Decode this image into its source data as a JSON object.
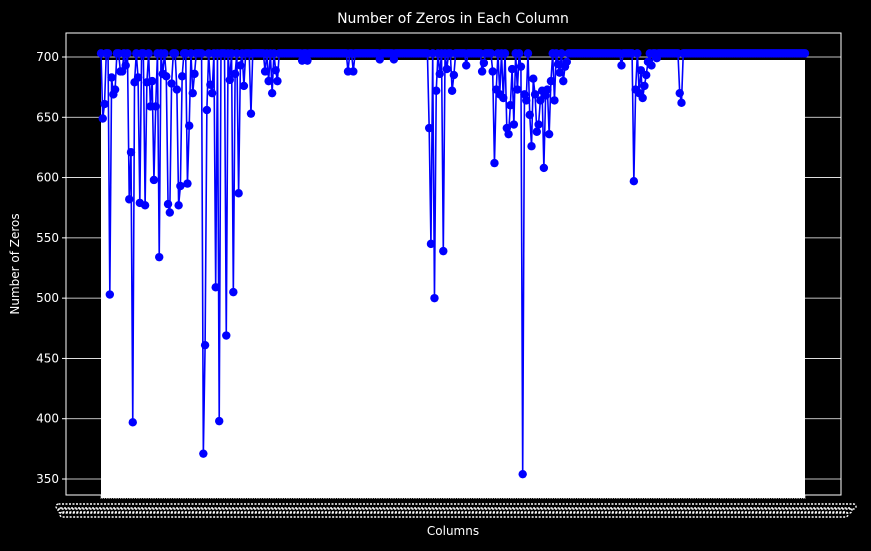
{
  "chart_data": {
    "type": "line",
    "title": "Number of Zeros in Each Column",
    "xlabel": "Columns",
    "ylabel": "Number of Zeros",
    "ylim": [
      335,
      719
    ],
    "yticks": [
      350,
      400,
      450,
      500,
      550,
      600,
      650,
      700
    ],
    "grid": true,
    "marker": "circle",
    "colors": {
      "line": "#0000ff",
      "marker": "#0000ff",
      "background": "#000000",
      "plot_area": "#ffffff",
      "text": "#ffffff",
      "grid": "#ffffff"
    },
    "baseline": 703,
    "n_points": 400,
    "dips": [
      [
        1,
        649
      ],
      [
        2,
        661
      ],
      [
        5,
        503
      ],
      [
        6,
        683
      ],
      [
        7,
        669
      ],
      [
        8,
        673
      ],
      [
        11,
        688
      ],
      [
        12,
        688
      ],
      [
        14,
        693
      ],
      [
        16,
        582
      ],
      [
        17,
        621
      ],
      [
        18,
        397
      ],
      [
        19,
        679
      ],
      [
        21,
        683
      ],
      [
        22,
        579
      ],
      [
        25,
        577
      ],
      [
        26,
        679
      ],
      [
        28,
        659
      ],
      [
        29,
        680
      ],
      [
        30,
        598
      ],
      [
        31,
        659
      ],
      [
        33,
        534
      ],
      [
        35,
        686
      ],
      [
        37,
        684
      ],
      [
        38,
        578
      ],
      [
        39,
        571
      ],
      [
        40,
        678
      ],
      [
        43,
        673
      ],
      [
        44,
        577
      ],
      [
        45,
        593
      ],
      [
        46,
        684
      ],
      [
        49,
        595
      ],
      [
        50,
        643
      ],
      [
        52,
        670
      ],
      [
        53,
        686
      ],
      [
        58,
        371
      ],
      [
        59,
        461
      ],
      [
        60,
        656
      ],
      [
        62,
        677
      ],
      [
        63,
        670
      ],
      [
        65,
        509
      ],
      [
        67,
        398
      ],
      [
        71,
        469
      ],
      [
        73,
        681
      ],
      [
        75,
        505
      ],
      [
        76,
        686
      ],
      [
        78,
        587
      ],
      [
        79,
        693
      ],
      [
        81,
        676
      ],
      [
        85,
        653
      ],
      [
        93,
        688
      ],
      [
        95,
        680
      ],
      [
        97,
        670
      ],
      [
        99,
        689
      ],
      [
        100,
        680
      ],
      [
        114,
        697
      ],
      [
        117,
        697
      ],
      [
        140,
        688
      ],
      [
        143,
        688
      ],
      [
        158,
        698
      ],
      [
        166,
        698
      ],
      [
        186,
        641
      ],
      [
        187,
        545
      ],
      [
        189,
        500
      ],
      [
        190,
        672
      ],
      [
        192,
        686
      ],
      [
        194,
        539
      ],
      [
        196,
        690
      ],
      [
        199,
        672
      ],
      [
        200,
        685
      ],
      [
        207,
        693
      ],
      [
        216,
        688
      ],
      [
        217,
        695
      ],
      [
        222,
        688
      ],
      [
        223,
        612
      ],
      [
        224,
        673
      ],
      [
        226,
        669
      ],
      [
        228,
        666
      ],
      [
        230,
        641
      ],
      [
        231,
        636
      ],
      [
        232,
        660
      ],
      [
        233,
        690
      ],
      [
        234,
        644
      ],
      [
        236,
        673
      ],
      [
        238,
        692
      ],
      [
        239,
        354
      ],
      [
        240,
        669
      ],
      [
        241,
        664
      ],
      [
        243,
        652
      ],
      [
        244,
        626
      ],
      [
        245,
        682
      ],
      [
        246,
        669
      ],
      [
        247,
        638
      ],
      [
        248,
        644
      ],
      [
        249,
        664
      ],
      [
        250,
        672
      ],
      [
        251,
        608
      ],
      [
        252,
        668
      ],
      [
        253,
        673
      ],
      [
        254,
        636
      ],
      [
        255,
        680
      ],
      [
        257,
        664
      ],
      [
        259,
        694
      ],
      [
        260,
        687
      ],
      [
        262,
        680
      ],
      [
        263,
        692
      ],
      [
        264,
        696
      ],
      [
        295,
        693
      ],
      [
        302,
        597
      ],
      [
        303,
        673
      ],
      [
        305,
        670
      ],
      [
        306,
        689
      ],
      [
        307,
        666
      ],
      [
        308,
        676
      ],
      [
        309,
        685
      ],
      [
        310,
        696
      ],
      [
        312,
        693
      ],
      [
        315,
        699
      ],
      [
        328,
        670
      ],
      [
        329,
        662
      ]
    ]
  }
}
